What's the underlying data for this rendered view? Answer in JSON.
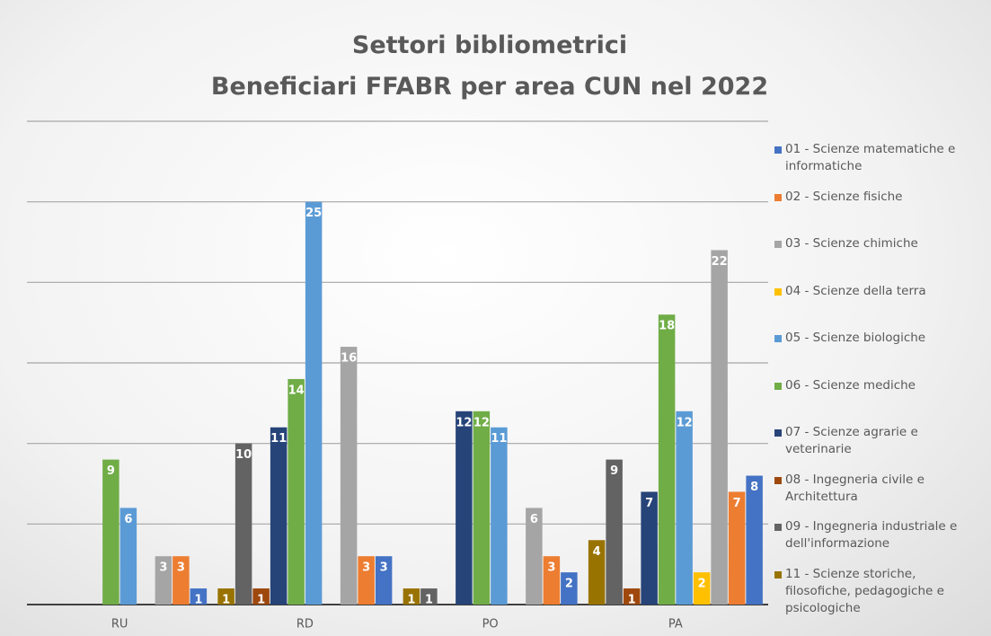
{
  "chart_data": {
    "type": "bar",
    "title": "Settori bibliometrici\nBeneficiari FFABR per area CUN nel 2022",
    "categories": [
      "RU",
      "RD",
      "PO",
      "PA"
    ],
    "ylim": [
      0,
      30
    ],
    "yticks": [
      0,
      5,
      10,
      15,
      20,
      25,
      30
    ],
    "grid": true,
    "legend": "right",
    "series": [
      {
        "name": "01 - Scienze matematiche e informatiche",
        "color": "#4472c4",
        "values": [
          1,
          3,
          2,
          8
        ]
      },
      {
        "name": "02 - Scienze fisiche",
        "color": "#ed7d31",
        "values": [
          3,
          3,
          3,
          7
        ]
      },
      {
        "name": "03 - Scienze chimiche",
        "color": "#a5a5a5",
        "values": [
          3,
          16,
          6,
          22
        ]
      },
      {
        "name": "04 - Scienze della terra",
        "color": "#ffc000",
        "values": [
          null,
          null,
          null,
          2
        ]
      },
      {
        "name": "05 - Scienze biologiche",
        "color": "#5b9bd5",
        "values": [
          6,
          25,
          11,
          12
        ]
      },
      {
        "name": "06 - Scienze mediche",
        "color": "#70ad47",
        "values": [
          9,
          14,
          12,
          18
        ]
      },
      {
        "name": "07 - Scienze agrarie e veterinarie",
        "color": "#264478",
        "values": [
          null,
          11,
          12,
          7
        ]
      },
      {
        "name": "08 - Ingegneria civile e Architettura",
        "color": "#9e480e",
        "values": [
          null,
          1,
          null,
          1
        ]
      },
      {
        "name": "09 - Ingegneria industriale e dell'informazione",
        "color": "#636363",
        "values": [
          null,
          10,
          1,
          9
        ]
      },
      {
        "name": "11 - Scienze storiche, filosofiche, pedagogiche e psicologiche",
        "color": "#997300",
        "values": [
          null,
          1,
          1,
          4
        ]
      }
    ]
  }
}
